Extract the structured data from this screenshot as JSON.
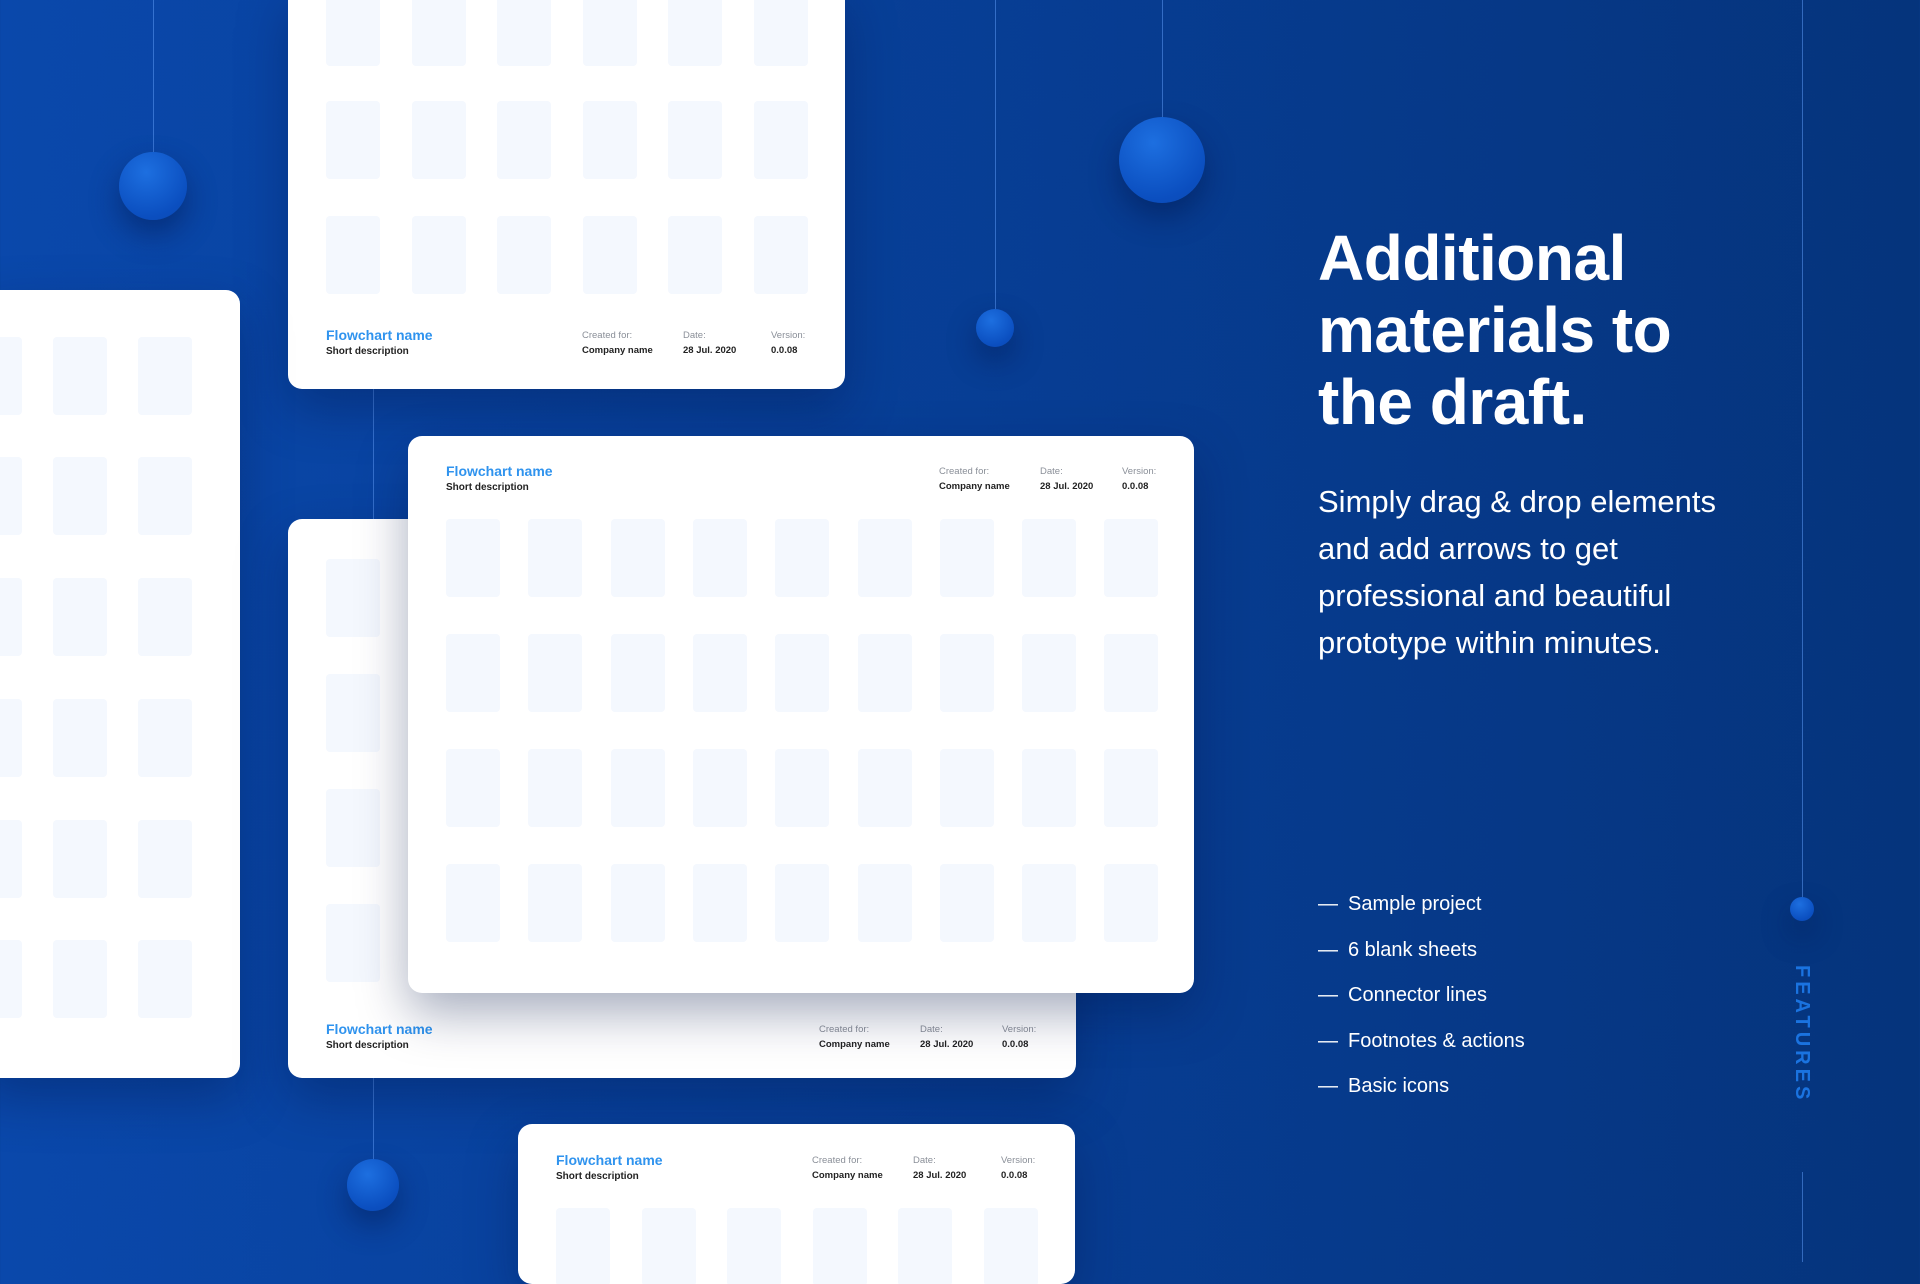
{
  "headline": "Additional materials to the draft.",
  "headline_lines": [
    "Additional",
    "materials to",
    "the draft."
  ],
  "paragraph": "Simply drag & drop elements and add arrows to get professional and beautiful prototype within minutes.",
  "features": [
    "Sample project",
    "6 blank sheets",
    "Connector lines",
    "Footnotes & actions",
    "Basic icons"
  ],
  "dash": "—",
  "side_label": "FEATURES",
  "sheet": {
    "title": "Flowchart name",
    "description": "Short description",
    "created_label": "Created for:",
    "created_value": "Company name",
    "date_label": "Date:",
    "date_value": "28 Jul. 2020",
    "version_label": "Version:",
    "version_value": "0.0.08"
  },
  "colors": {
    "background": "#0a48ab",
    "accent": "#2f93ee",
    "side_label": "#1a73e0",
    "tile": "#f4f8fe"
  }
}
